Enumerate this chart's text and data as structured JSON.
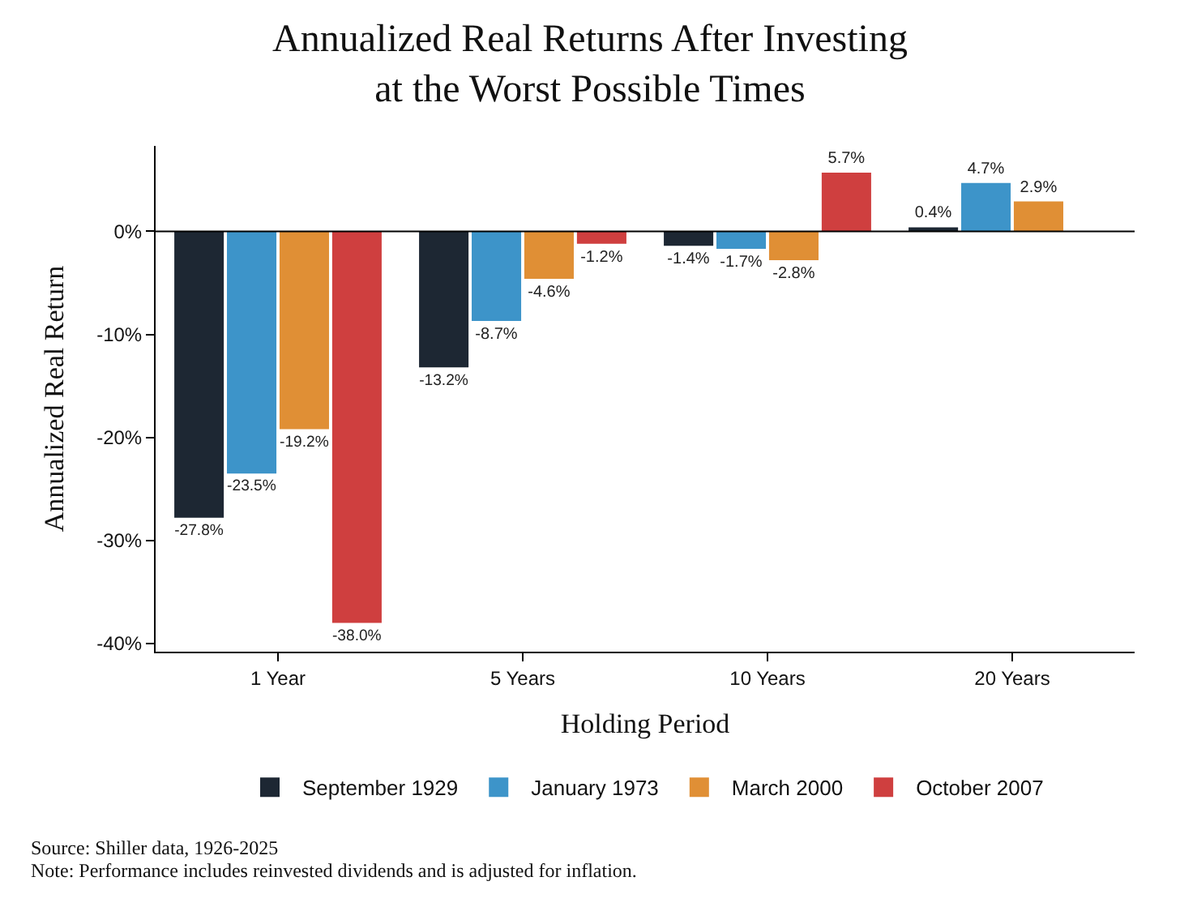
{
  "chart_data": {
    "type": "bar",
    "title": "Annualized Real Returns After Investing\nat the Worst Possible Times",
    "xlabel": "Holding Period",
    "ylabel": "Annualized Real Return",
    "categories": [
      "1 Year",
      "5 Years",
      "10 Years",
      "20 Years"
    ],
    "series": [
      {
        "name": "September 1929",
        "color": "#1d2733",
        "values": [
          -27.8,
          -13.2,
          -1.4,
          0.4
        ],
        "value_labels": [
          "-27.8%",
          "-13.2%",
          "-1.4%",
          "0.4%"
        ]
      },
      {
        "name": "January 1973",
        "color": "#3d94c9",
        "values": [
          -23.5,
          -8.7,
          -1.7,
          4.7
        ],
        "value_labels": [
          "-23.5%",
          "-8.7%",
          "-1.7%",
          "4.7%"
        ]
      },
      {
        "name": "March 2000",
        "color": "#e08f35",
        "values": [
          -19.2,
          -4.6,
          -2.8,
          2.9
        ],
        "value_labels": [
          "-19.2%",
          "-4.6%",
          "-2.8%",
          "2.9%"
        ]
      },
      {
        "name": "October 2007",
        "color": "#cf3f3f",
        "values": [
          -38.0,
          -1.2,
          5.7,
          null
        ],
        "value_labels": [
          "-38.0%",
          "-1.2%",
          "5.7%",
          null
        ]
      }
    ],
    "ylim": [
      -40.8,
      8.3
    ],
    "yticks": [
      {
        "value": -40,
        "label": "-40%"
      },
      {
        "value": -30,
        "label": "-30%"
      },
      {
        "value": -20,
        "label": "-20%"
      },
      {
        "value": -10,
        "label": "-10%"
      },
      {
        "value": 0,
        "label": "0%"
      }
    ],
    "ref_lines": [
      {
        "axis": "y",
        "value": 0,
        "color": "#000000"
      }
    ],
    "legend": "bottom",
    "annotations": [
      "Source: Shiller data, 1926-2025",
      "Note: Performance includes reinvested dividends and is adjusted for inflation."
    ]
  }
}
